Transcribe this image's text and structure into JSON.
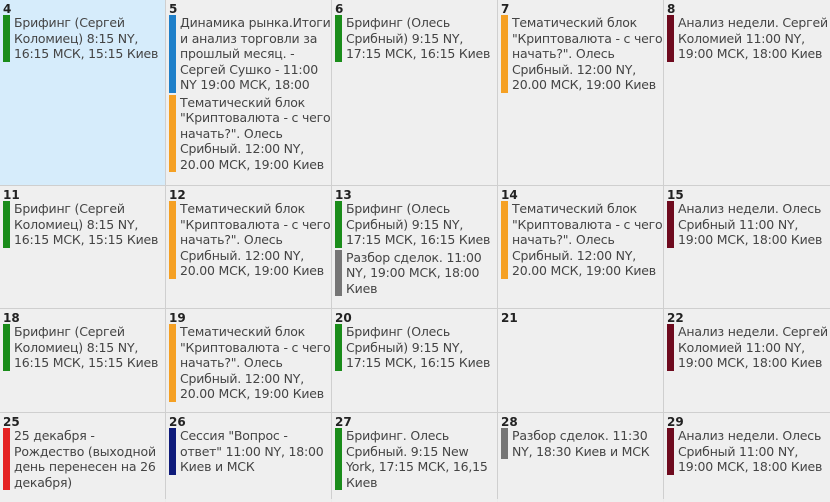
{
  "colors": {
    "green": "#1a8c1a",
    "blue": "#1e7fc9",
    "orange": "#f5a023",
    "maroon": "#6e0a1e",
    "gray": "#757575",
    "red": "#e52222",
    "navy": "#0e1a7a",
    "today_bg": "#d6ecfb"
  },
  "calendar": {
    "weeks": [
      [
        {
          "day": "4",
          "today": true,
          "events": [
            {
              "color": "green",
              "text": "Брифинг (Сергей Коломиец) 8:15 NY, 16:15 МСК, 15:15 Киев"
            }
          ]
        },
        {
          "day": "5",
          "events": [
            {
              "color": "blue",
              "text": "Динамика рынка.Итоги и анализ торговли за прошлый месяц. - Сергей Сушко - 11:00 NY 19:00 МСК, 18:00"
            },
            {
              "color": "orange",
              "text": "Тематический блок \"Криптовалюта - с чего начать?\". Олесь Срибный. 12:00 NY, 20.00 МСК, 19:00 Киев"
            }
          ]
        },
        {
          "day": "6",
          "events": [
            {
              "color": "green",
              "text": "Брифинг (Олесь Срибный) 9:15 NY, 17:15 МСК, 16:15 Киев"
            }
          ]
        },
        {
          "day": "7",
          "events": [
            {
              "color": "orange",
              "text": "Тематический блок \"Криптовалюта - с чего начать?\". Олесь Срибный. 12:00 NY, 20.00 МСК, 19:00 Киев"
            }
          ]
        },
        {
          "day": "8",
          "events": [
            {
              "color": "maroon",
              "text": "Анализ недели. Сергей Коломией 11:00 NY, 19:00 МСК, 18:00 Киев"
            }
          ]
        }
      ],
      [
        {
          "day": "11",
          "events": [
            {
              "color": "green",
              "text": "Брифинг (Сергей Коломиец) 8:15 NY, 16:15 МСК, 15:15 Киев"
            }
          ]
        },
        {
          "day": "12",
          "events": [
            {
              "color": "orange",
              "text": "Тематический блок \"Криптовалюта - с чего начать?\". Олесь Срибный. 12:00 NY, 20.00 МСК, 19:00 Киев"
            }
          ]
        },
        {
          "day": "13",
          "events": [
            {
              "color": "green",
              "text": "Брифинг (Олесь Срибный) 9:15 NY, 17:15 МСК, 16:15 Киев"
            },
            {
              "color": "gray",
              "text": "Разбор сделок. 11:00 NY, 19:00 МСК, 18:00 Киев"
            }
          ]
        },
        {
          "day": "14",
          "events": [
            {
              "color": "orange",
              "text": "Тематический блок \"Криптовалюта - с чего начать?\". Олесь Срибный. 12:00 NY, 20.00 МСК, 19:00 Киев"
            }
          ]
        },
        {
          "day": "15",
          "events": [
            {
              "color": "maroon",
              "text": "Анализ недели. Олесь Срибный 11:00 NY, 19:00 МСК, 18:00 Киев"
            }
          ]
        }
      ],
      [
        {
          "day": "18",
          "events": [
            {
              "color": "green",
              "text": "Брифинг (Сергей Коломиец) 8:15 NY, 16:15 МСК, 15:15 Киев"
            }
          ]
        },
        {
          "day": "19",
          "events": [
            {
              "color": "orange",
              "text": "Тематический блок \"Криптовалюта - с чего начать?\". Олесь Срибный. 12:00 NY, 20.00 МСК, 19:00 Киев"
            }
          ]
        },
        {
          "day": "20",
          "events": [
            {
              "color": "green",
              "text": "Брифинг (Олесь Срибный) 9:15 NY, 17:15 МСК, 16:15 Киев"
            }
          ]
        },
        {
          "day": "21",
          "events": []
        },
        {
          "day": "22",
          "events": [
            {
              "color": "maroon",
              "text": "Анализ недели. Сергей Коломией 11:00 NY, 19:00 МСК, 18:00 Киев"
            }
          ]
        }
      ],
      [
        {
          "day": "25",
          "events": [
            {
              "color": "red",
              "text": "25 декабря - Рождество (выходной день перенесен на 26 декабря)"
            }
          ]
        },
        {
          "day": "26",
          "events": [
            {
              "color": "navy",
              "text": "Сессия \"Вопрос - ответ\" 11:00 NY, 18:00 Киев и МСК"
            }
          ]
        },
        {
          "day": "27",
          "events": [
            {
              "color": "green",
              "text": "Брифинг. Олесь Срибный. 9:15 New York, 17:15 МСК, 16,15 Киев"
            }
          ]
        },
        {
          "day": "28",
          "events": [
            {
              "color": "gray",
              "text": "Разбор сделок. 11:30 NY, 18:30 Киев и МСК"
            }
          ]
        },
        {
          "day": "29",
          "events": [
            {
              "color": "maroon",
              "text": "Анализ недели. Олесь Срибный 11:00 NY, 19:00 МСК, 18:00 Киев"
            }
          ]
        }
      ]
    ]
  }
}
